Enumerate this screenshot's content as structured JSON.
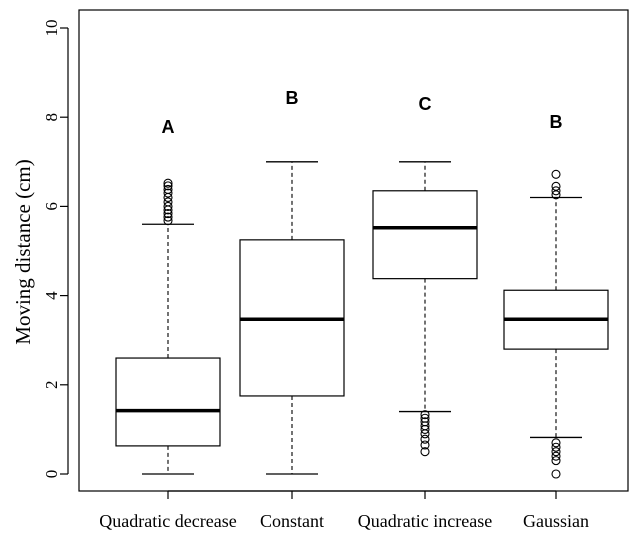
{
  "chart_data": {
    "type": "boxplot",
    "ylabel": "Moving distance (cm)",
    "xlabel": "",
    "title": "",
    "ylim": [
      0,
      10
    ],
    "yticks": [
      0,
      2,
      4,
      6,
      8,
      10
    ],
    "grid": false,
    "categories": [
      "Quadratic decrease",
      "Constant",
      "Quadratic increase",
      "Gaussian"
    ],
    "groups": [
      {
        "label": "Quadratic decrease",
        "letter": "A",
        "whisker_low": 0,
        "q1": 0.63,
        "median": 1.42,
        "q3": 2.6,
        "whisker_high": 5.6,
        "outliers": [
          5.68,
          5.76,
          5.84,
          5.92,
          6.0,
          6.1,
          6.2,
          6.3,
          6.38,
          6.46,
          6.52
        ]
      },
      {
        "label": "Constant",
        "letter": "B",
        "whisker_low": 0,
        "q1": 1.75,
        "median": 3.47,
        "q3": 5.25,
        "whisker_high": 7.0,
        "outliers": []
      },
      {
        "label": "Quadratic increase",
        "letter": "C",
        "whisker_low": 1.4,
        "q1": 4.38,
        "median": 5.52,
        "q3": 6.35,
        "whisker_high": 7.0,
        "outliers": [
          1.33,
          1.25,
          1.17,
          1.08,
          1.0,
          0.9,
          0.78,
          0.65,
          0.5
        ]
      },
      {
        "label": "Gaussian",
        "letter": "B",
        "whisker_low": 0.82,
        "q1": 2.8,
        "median": 3.47,
        "q3": 4.12,
        "whisker_high": 6.2,
        "outliers": [
          6.26,
          6.35,
          6.45,
          6.72,
          0.7,
          0.6,
          0.5,
          0.4,
          0.3,
          0.0
        ]
      }
    ]
  }
}
